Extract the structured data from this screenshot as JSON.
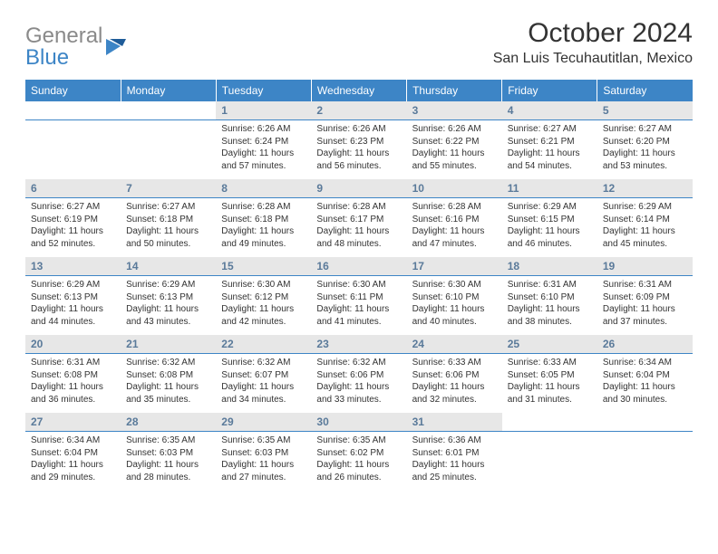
{
  "logo": {
    "word1": "General",
    "word2": "Blue"
  },
  "title": "October 2024",
  "location": "San Luis Tecuhautitlan, Mexico",
  "colors": {
    "header_bg": "#3d85c6",
    "header_text": "#ffffff",
    "daynum_bg": "#e7e7e7",
    "daynum_text": "#5a7a9a",
    "border": "#3d85c6",
    "body_text": "#333333",
    "logo_gray": "#8a8a8a",
    "logo_blue": "#3d85c6"
  },
  "day_names": [
    "Sunday",
    "Monday",
    "Tuesday",
    "Wednesday",
    "Thursday",
    "Friday",
    "Saturday"
  ],
  "weeks": [
    [
      {
        "n": "",
        "sr": "",
        "ss": "",
        "dl": ""
      },
      {
        "n": "",
        "sr": "",
        "ss": "",
        "dl": ""
      },
      {
        "n": "1",
        "sr": "Sunrise: 6:26 AM",
        "ss": "Sunset: 6:24 PM",
        "dl": "Daylight: 11 hours and 57 minutes."
      },
      {
        "n": "2",
        "sr": "Sunrise: 6:26 AM",
        "ss": "Sunset: 6:23 PM",
        "dl": "Daylight: 11 hours and 56 minutes."
      },
      {
        "n": "3",
        "sr": "Sunrise: 6:26 AM",
        "ss": "Sunset: 6:22 PM",
        "dl": "Daylight: 11 hours and 55 minutes."
      },
      {
        "n": "4",
        "sr": "Sunrise: 6:27 AM",
        "ss": "Sunset: 6:21 PM",
        "dl": "Daylight: 11 hours and 54 minutes."
      },
      {
        "n": "5",
        "sr": "Sunrise: 6:27 AM",
        "ss": "Sunset: 6:20 PM",
        "dl": "Daylight: 11 hours and 53 minutes."
      }
    ],
    [
      {
        "n": "6",
        "sr": "Sunrise: 6:27 AM",
        "ss": "Sunset: 6:19 PM",
        "dl": "Daylight: 11 hours and 52 minutes."
      },
      {
        "n": "7",
        "sr": "Sunrise: 6:27 AM",
        "ss": "Sunset: 6:18 PM",
        "dl": "Daylight: 11 hours and 50 minutes."
      },
      {
        "n": "8",
        "sr": "Sunrise: 6:28 AM",
        "ss": "Sunset: 6:18 PM",
        "dl": "Daylight: 11 hours and 49 minutes."
      },
      {
        "n": "9",
        "sr": "Sunrise: 6:28 AM",
        "ss": "Sunset: 6:17 PM",
        "dl": "Daylight: 11 hours and 48 minutes."
      },
      {
        "n": "10",
        "sr": "Sunrise: 6:28 AM",
        "ss": "Sunset: 6:16 PM",
        "dl": "Daylight: 11 hours and 47 minutes."
      },
      {
        "n": "11",
        "sr": "Sunrise: 6:29 AM",
        "ss": "Sunset: 6:15 PM",
        "dl": "Daylight: 11 hours and 46 minutes."
      },
      {
        "n": "12",
        "sr": "Sunrise: 6:29 AM",
        "ss": "Sunset: 6:14 PM",
        "dl": "Daylight: 11 hours and 45 minutes."
      }
    ],
    [
      {
        "n": "13",
        "sr": "Sunrise: 6:29 AM",
        "ss": "Sunset: 6:13 PM",
        "dl": "Daylight: 11 hours and 44 minutes."
      },
      {
        "n": "14",
        "sr": "Sunrise: 6:29 AM",
        "ss": "Sunset: 6:13 PM",
        "dl": "Daylight: 11 hours and 43 minutes."
      },
      {
        "n": "15",
        "sr": "Sunrise: 6:30 AM",
        "ss": "Sunset: 6:12 PM",
        "dl": "Daylight: 11 hours and 42 minutes."
      },
      {
        "n": "16",
        "sr": "Sunrise: 6:30 AM",
        "ss": "Sunset: 6:11 PM",
        "dl": "Daylight: 11 hours and 41 minutes."
      },
      {
        "n": "17",
        "sr": "Sunrise: 6:30 AM",
        "ss": "Sunset: 6:10 PM",
        "dl": "Daylight: 11 hours and 40 minutes."
      },
      {
        "n": "18",
        "sr": "Sunrise: 6:31 AM",
        "ss": "Sunset: 6:10 PM",
        "dl": "Daylight: 11 hours and 38 minutes."
      },
      {
        "n": "19",
        "sr": "Sunrise: 6:31 AM",
        "ss": "Sunset: 6:09 PM",
        "dl": "Daylight: 11 hours and 37 minutes."
      }
    ],
    [
      {
        "n": "20",
        "sr": "Sunrise: 6:31 AM",
        "ss": "Sunset: 6:08 PM",
        "dl": "Daylight: 11 hours and 36 minutes."
      },
      {
        "n": "21",
        "sr": "Sunrise: 6:32 AM",
        "ss": "Sunset: 6:08 PM",
        "dl": "Daylight: 11 hours and 35 minutes."
      },
      {
        "n": "22",
        "sr": "Sunrise: 6:32 AM",
        "ss": "Sunset: 6:07 PM",
        "dl": "Daylight: 11 hours and 34 minutes."
      },
      {
        "n": "23",
        "sr": "Sunrise: 6:32 AM",
        "ss": "Sunset: 6:06 PM",
        "dl": "Daylight: 11 hours and 33 minutes."
      },
      {
        "n": "24",
        "sr": "Sunrise: 6:33 AM",
        "ss": "Sunset: 6:06 PM",
        "dl": "Daylight: 11 hours and 32 minutes."
      },
      {
        "n": "25",
        "sr": "Sunrise: 6:33 AM",
        "ss": "Sunset: 6:05 PM",
        "dl": "Daylight: 11 hours and 31 minutes."
      },
      {
        "n": "26",
        "sr": "Sunrise: 6:34 AM",
        "ss": "Sunset: 6:04 PM",
        "dl": "Daylight: 11 hours and 30 minutes."
      }
    ],
    [
      {
        "n": "27",
        "sr": "Sunrise: 6:34 AM",
        "ss": "Sunset: 6:04 PM",
        "dl": "Daylight: 11 hours and 29 minutes."
      },
      {
        "n": "28",
        "sr": "Sunrise: 6:35 AM",
        "ss": "Sunset: 6:03 PM",
        "dl": "Daylight: 11 hours and 28 minutes."
      },
      {
        "n": "29",
        "sr": "Sunrise: 6:35 AM",
        "ss": "Sunset: 6:03 PM",
        "dl": "Daylight: 11 hours and 27 minutes."
      },
      {
        "n": "30",
        "sr": "Sunrise: 6:35 AM",
        "ss": "Sunset: 6:02 PM",
        "dl": "Daylight: 11 hours and 26 minutes."
      },
      {
        "n": "31",
        "sr": "Sunrise: 6:36 AM",
        "ss": "Sunset: 6:01 PM",
        "dl": "Daylight: 11 hours and 25 minutes."
      },
      {
        "n": "",
        "sr": "",
        "ss": "",
        "dl": ""
      },
      {
        "n": "",
        "sr": "",
        "ss": "",
        "dl": ""
      }
    ]
  ]
}
